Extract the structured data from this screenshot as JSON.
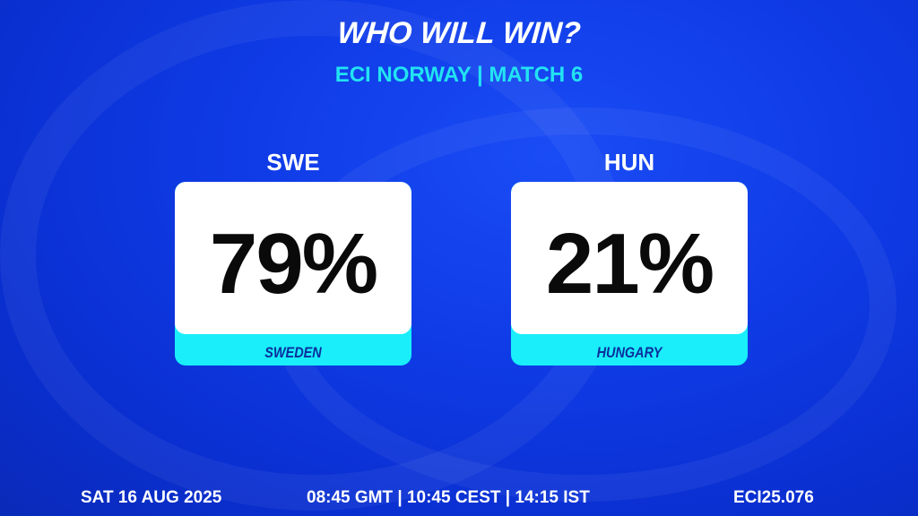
{
  "header": {
    "title": "WHO WILL WIN?",
    "subtitle": "ECI NORWAY | MATCH 6"
  },
  "teams": [
    {
      "code": "SWE",
      "percent": "79%",
      "name": "SWEDEN"
    },
    {
      "code": "HUN",
      "percent": "21%",
      "name": "HUNGARY"
    }
  ],
  "footer": {
    "date": "SAT 16 AUG 2025",
    "times": "08:45 GMT | 10:45 CEST | 14:15 IST",
    "id": "ECI25.076"
  },
  "colors": {
    "background": "#0f3be6",
    "accent": "#22e3f2",
    "band": "#19eefa",
    "team_name": "#0c2e9c"
  }
}
